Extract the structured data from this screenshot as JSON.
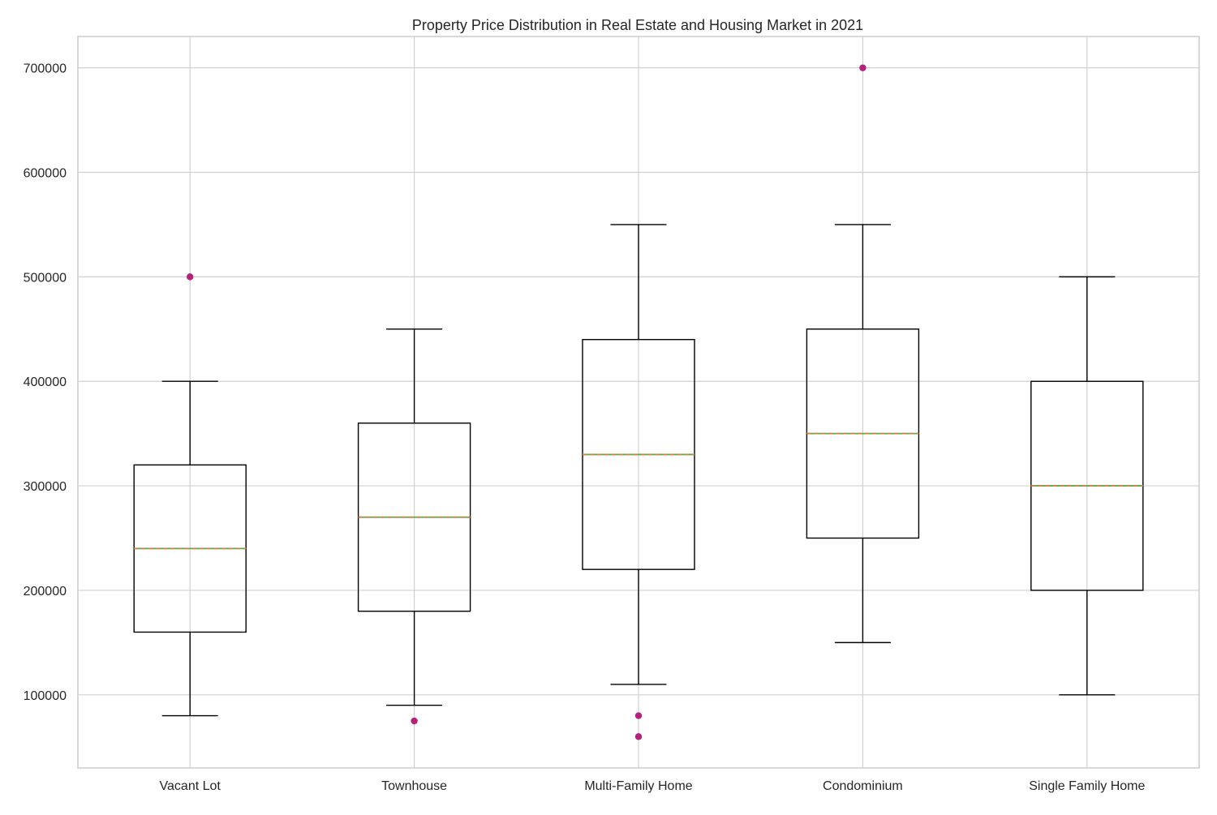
{
  "chart_data": {
    "type": "box",
    "title": "Property Price Distribution in Real Estate and Housing Market in 2021",
    "xlabel": "",
    "ylabel": "",
    "ylim": [
      30000,
      730000
    ],
    "yticks": [
      100000,
      200000,
      300000,
      400000,
      500000,
      600000,
      700000
    ],
    "grid": true,
    "legend": "none",
    "colors": {
      "box": "#000000",
      "median": "#4caf50",
      "mean_dash": "#e07b3a",
      "outlier": "#b5217a",
      "grid": "#d0d0d0"
    },
    "categories": [
      "Vacant Lot",
      "Townhouse",
      "Multi-Family Home",
      "Condominium",
      "Single Family Home"
    ],
    "boxes": [
      {
        "label": "Vacant Lot",
        "min": 80000,
        "q1": 160000,
        "median": 240000,
        "q3": 320000,
        "max": 400000,
        "outliers": [
          500000
        ]
      },
      {
        "label": "Townhouse",
        "min": 90000,
        "q1": 180000,
        "median": 270000,
        "q3": 360000,
        "max": 450000,
        "outliers": [
          75000
        ]
      },
      {
        "label": "Multi-Family Home",
        "min": 110000,
        "q1": 220000,
        "median": 330000,
        "q3": 440000,
        "max": 550000,
        "outliers": [
          80000,
          60000
        ]
      },
      {
        "label": "Condominium",
        "min": 150000,
        "q1": 250000,
        "median": 350000,
        "q3": 450000,
        "max": 550000,
        "outliers": [
          700000
        ]
      },
      {
        "label": "Single Family Home",
        "min": 100000,
        "q1": 200000,
        "median": 300000,
        "q3": 400000,
        "max": 500000,
        "outliers": []
      }
    ]
  }
}
